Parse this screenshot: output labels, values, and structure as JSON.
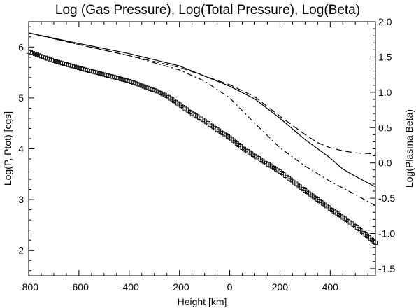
{
  "chart_data": {
    "type": "line",
    "title": "Log (Gas Pressure), Log(Total Pressure), Log(Beta)",
    "xlabel": "Height [km]",
    "ylabel": "Log(P, Ptot) [cgs]",
    "y2label": "Log(Plasma Beta)",
    "xlim": [
      -800,
      580
    ],
    "ylim": [
      1.5,
      6.5
    ],
    "y2lim": [
      -1.6,
      2.0
    ],
    "x_ticks": [
      -800,
      -600,
      -400,
      -200,
      0,
      200,
      400
    ],
    "y_ticks": [
      2,
      3,
      4,
      5,
      6
    ],
    "y2_ticks": [
      -1.5,
      -1.0,
      -0.5,
      0.0,
      0.5,
      1.0,
      1.5,
      2.0
    ],
    "x_tick_labels": [
      "-800",
      "-600",
      "-400",
      "-200",
      "0",
      "200",
      "400"
    ],
    "y_tick_labels": [
      "2",
      "3",
      "4",
      "5",
      "6"
    ],
    "y2_tick_labels": [
      "-1.5",
      "-1.0",
      "-0.5",
      "0.0",
      "0.5",
      "1.0",
      "1.5",
      "2.0"
    ],
    "grid": false,
    "legend": "none",
    "series": [
      {
        "axis": "left",
        "style": "solid",
        "x": [
          -800,
          -600,
          -400,
          -200,
          0,
          100,
          200,
          300,
          400,
          450,
          500,
          580
        ],
        "y": [
          6.28,
          6.07,
          5.87,
          5.63,
          5.23,
          4.98,
          4.6,
          4.18,
          3.82,
          3.6,
          3.46,
          3.25
        ]
      },
      {
        "axis": "left",
        "style": "dashed",
        "x": [
          -800,
          -600,
          -400,
          -200,
          0,
          100,
          200,
          300,
          350,
          400,
          450,
          500,
          580
        ],
        "y": [
          6.28,
          6.05,
          5.83,
          5.6,
          5.26,
          5.02,
          4.64,
          4.28,
          4.12,
          4.02,
          3.96,
          3.92,
          3.9
        ]
      },
      {
        "axis": "left",
        "style": "dash-dot",
        "x": [
          -800,
          -600,
          -400,
          -200,
          -100,
          0,
          100,
          200,
          300,
          400,
          500,
          580
        ],
        "y": [
          6.28,
          6.05,
          5.83,
          5.55,
          5.33,
          5.0,
          4.5,
          4.02,
          3.66,
          3.36,
          3.1,
          2.88
        ]
      },
      {
        "axis": "left",
        "style": "square-markers",
        "x": [
          -800,
          -700,
          -600,
          -500,
          -400,
          -300,
          -250,
          -200,
          -150,
          -100,
          -50,
          0,
          50,
          100,
          200,
          300,
          400,
          500,
          580
        ],
        "y": [
          5.91,
          5.73,
          5.59,
          5.46,
          5.33,
          5.15,
          5.04,
          4.87,
          4.7,
          4.55,
          4.38,
          4.22,
          4.02,
          3.86,
          3.55,
          3.18,
          2.82,
          2.48,
          2.15
        ]
      }
    ]
  }
}
